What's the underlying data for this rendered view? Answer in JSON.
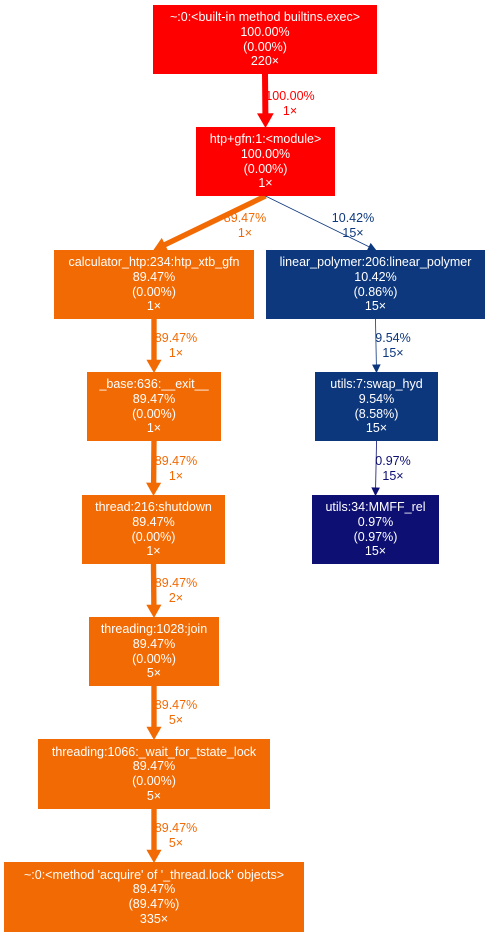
{
  "nodes": [
    {
      "name": "~:0:<built-in method builtins.exec>",
      "total": "100.00%",
      "self": "(0.00%)",
      "calls": "220×",
      "color": "#ff0000"
    },
    {
      "name": "htp+gfn:1:<module>",
      "total": "100.00%",
      "self": "(0.00%)",
      "calls": "1×",
      "color": "#ff0000"
    },
    {
      "name": "calculator_htp:234:htp_xtb_gfn",
      "total": "89.47%",
      "self": "(0.00%)",
      "calls": "1×",
      "color": "#f26a04"
    },
    {
      "name": "linear_polymer:206:linear_polymer",
      "total": "10.42%",
      "self": "(0.86%)",
      "calls": "15×",
      "color": "#0d387e"
    },
    {
      "name": "_base:636:__exit__",
      "total": "89.47%",
      "self": "(0.00%)",
      "calls": "1×",
      "color": "#f26a04"
    },
    {
      "name": "utils:7:swap_hyd",
      "total": "9.54%",
      "self": "(8.58%)",
      "calls": "15×",
      "color": "#0d377d"
    },
    {
      "name": "thread:216:shutdown",
      "total": "89.47%",
      "self": "(0.00%)",
      "calls": "1×",
      "color": "#f26a04"
    },
    {
      "name": "utils:34:MMFF_rel",
      "total": "0.97%",
      "self": "(0.97%)",
      "calls": "15×",
      "color": "#0d0f73"
    },
    {
      "name": "threading:1028:join",
      "total": "89.47%",
      "self": "(0.00%)",
      "calls": "5×",
      "color": "#f26a04"
    },
    {
      "name": "threading:1066:_wait_for_tstate_lock",
      "total": "89.47%",
      "self": "(0.00%)",
      "calls": "5×",
      "color": "#f26a04"
    },
    {
      "name": "~:0:<method 'acquire' of '_thread.lock' objects>",
      "total": "89.47%",
      "self": "(89.47%)",
      "calls": "335×",
      "color": "#f26a04"
    }
  ],
  "edges": [
    {
      "from": 0,
      "to": 1,
      "pct": "100.00%",
      "calls": "1×",
      "color": "#ff0000",
      "weight": 100
    },
    {
      "from": 1,
      "to": 2,
      "pct": "89.47%",
      "calls": "1×",
      "color": "#f26a04",
      "weight": 89.47
    },
    {
      "from": 1,
      "to": 3,
      "pct": "10.42%",
      "calls": "15×",
      "color": "#0d387e",
      "weight": 10.42
    },
    {
      "from": 2,
      "to": 4,
      "pct": "89.47%",
      "calls": "1×",
      "color": "#f26a04",
      "weight": 89.47
    },
    {
      "from": 3,
      "to": 5,
      "pct": "9.54%",
      "calls": "15×",
      "color": "#0d377d",
      "weight": 9.54
    },
    {
      "from": 4,
      "to": 6,
      "pct": "89.47%",
      "calls": "1×",
      "color": "#f26a04",
      "weight": 89.47
    },
    {
      "from": 5,
      "to": 7,
      "pct": "0.97%",
      "calls": "15×",
      "color": "#0d0f73",
      "weight": 0.97
    },
    {
      "from": 6,
      "to": 8,
      "pct": "89.47%",
      "calls": "2×",
      "color": "#f26a04",
      "weight": 89.47
    },
    {
      "from": 8,
      "to": 9,
      "pct": "89.47%",
      "calls": "5×",
      "color": "#f26a04",
      "weight": 89.47
    },
    {
      "from": 9,
      "to": 10,
      "pct": "89.47%",
      "calls": "5×",
      "color": "#f26a04",
      "weight": 89.47
    }
  ]
}
